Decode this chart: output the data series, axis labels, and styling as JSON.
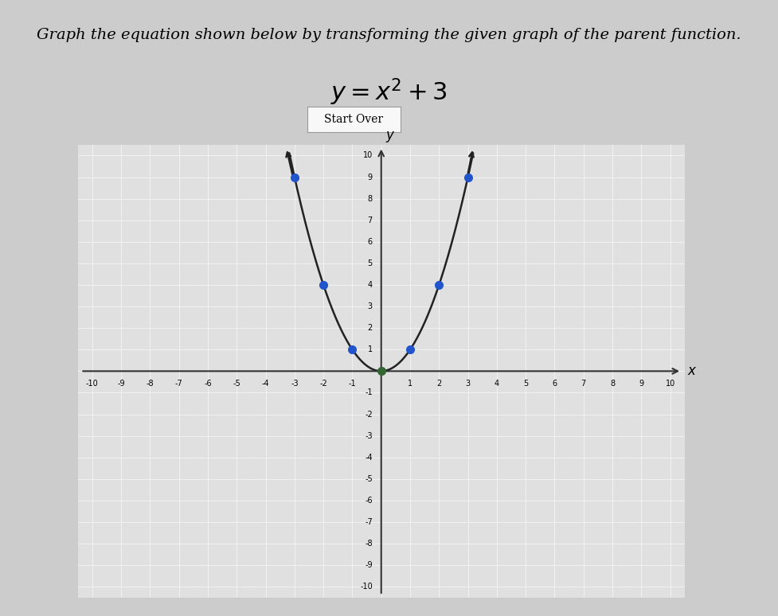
{
  "title_main": "Graph the equation shown below by transforming the given graph of the parent function.",
  "equation_latex": "$y = x^2 + 3$",
  "button_text": "Start Over",
  "xlim": [
    -10.5,
    10.5
  ],
  "ylim": [
    -10.5,
    10.5
  ],
  "xtick_vals": [
    -10,
    -9,
    -8,
    -7,
    -6,
    -5,
    -4,
    -3,
    -2,
    -1,
    1,
    2,
    3,
    4,
    5,
    6,
    7,
    8,
    9,
    10
  ],
  "ytick_vals": [
    -10,
    -9,
    -8,
    -7,
    -6,
    -5,
    -4,
    -3,
    -2,
    -1,
    1,
    2,
    3,
    4,
    5,
    6,
    7,
    8,
    9,
    10
  ],
  "curve_color": "#222222",
  "dot_color": "#2255cc",
  "origin_dot_color": "#336633",
  "dot_points": [
    [
      -3,
      9
    ],
    [
      -2,
      4
    ],
    [
      -1,
      1
    ],
    [
      0,
      0
    ],
    [
      1,
      1
    ],
    [
      2,
      4
    ],
    [
      3,
      9
    ]
  ],
  "bg_color": "#e0e0e0",
  "grid_color": "#f5f5f5",
  "axis_color": "#333333",
  "page_bg": "#cccccc",
  "title_fontsize": 14,
  "eq_fontsize": 22
}
